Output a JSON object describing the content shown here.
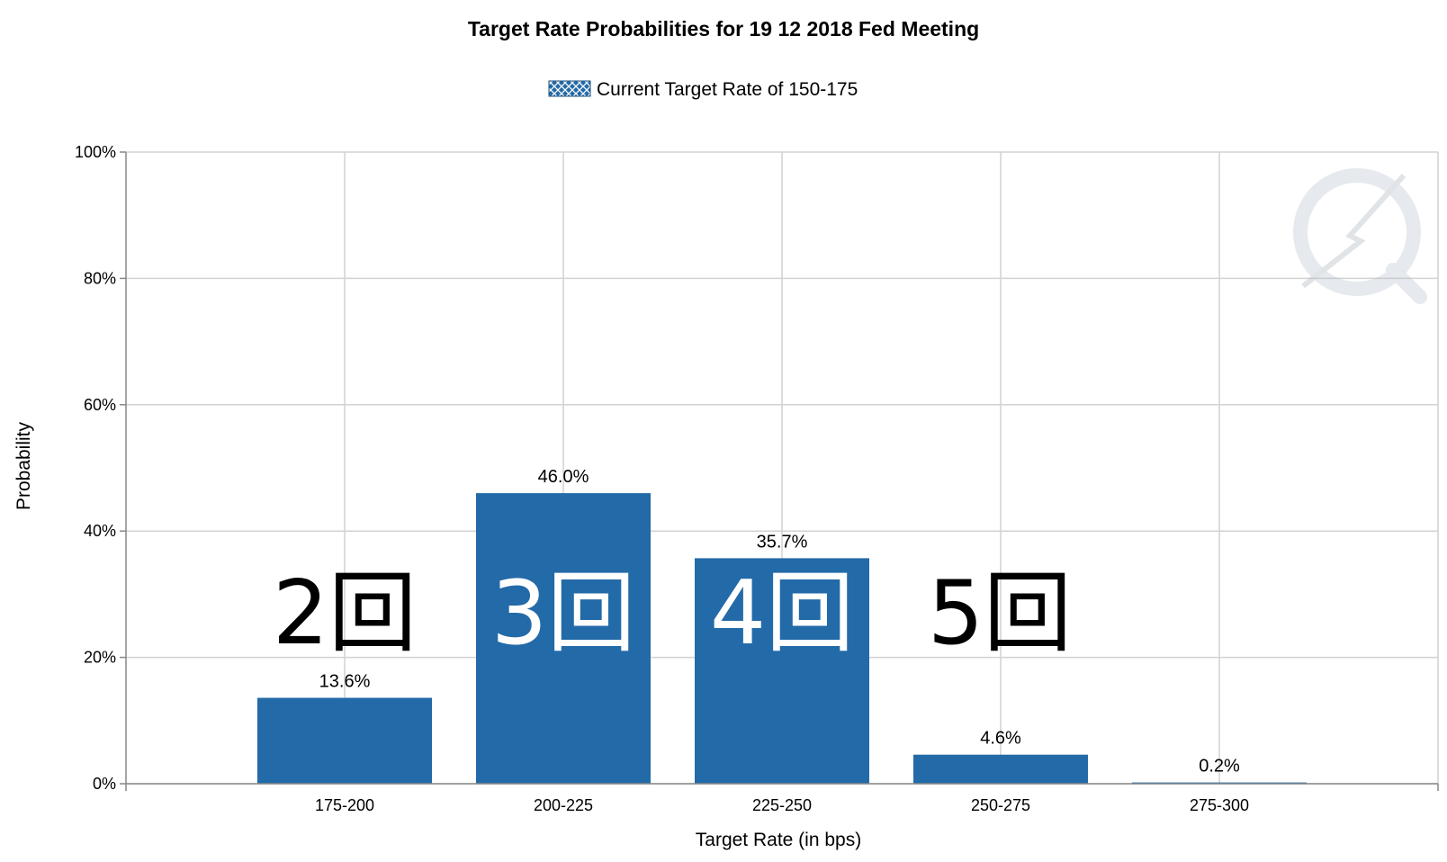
{
  "chart_data": {
    "type": "bar",
    "title": "Target Rate Probabilities for 19 12 2018 Fed Meeting",
    "xlabel": "Target Rate (in bps)",
    "ylabel": "Probability",
    "ylim": [
      0,
      100
    ],
    "yticks": [
      "0%",
      "20%",
      "40%",
      "60%",
      "80%",
      "100%"
    ],
    "categories": [
      "175-200",
      "200-225",
      "225-250",
      "250-275",
      "275-300"
    ],
    "series": [
      {
        "name": "Current Target Rate of 150-175",
        "values": [
          13.6,
          46.0,
          35.7,
          4.6,
          0.2
        ],
        "labels": [
          "13.6%",
          "46.0%",
          "35.7%",
          "4.6%",
          "0.2%"
        ]
      }
    ],
    "grid": true,
    "legend_position": "top-center",
    "bar_color": "#236aa8",
    "annotations": [
      "2回",
      "3回",
      "4回",
      "5回"
    ]
  }
}
